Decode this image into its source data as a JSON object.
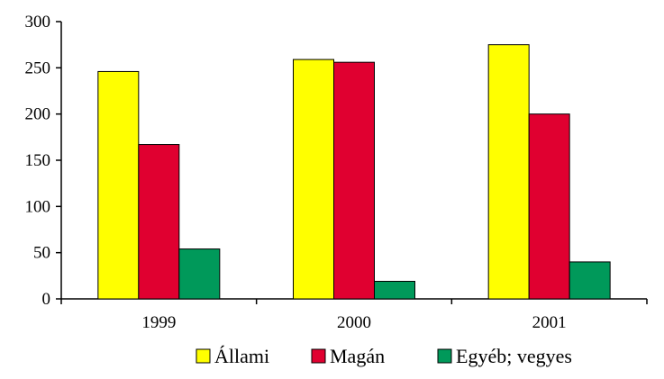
{
  "chart_data": {
    "type": "bar",
    "categories": [
      "1999",
      "2000",
      "2001"
    ],
    "series": [
      {
        "name": "Állami",
        "values": [
          246,
          259,
          275
        ],
        "color": "#ffff00"
      },
      {
        "name": "Magán",
        "values": [
          167,
          256,
          200
        ],
        "color": "#e00030"
      },
      {
        "name": "Egyéb; vegyes",
        "values": [
          54,
          19,
          40
        ],
        "color": "#00995a"
      }
    ],
    "title": "",
    "xlabel": "",
    "ylabel": "",
    "ylim": [
      0,
      300
    ],
    "yticks": [
      "0",
      "50",
      "100",
      "150",
      "200",
      "250",
      "300"
    ],
    "grid": false,
    "legend_position": "bottom"
  }
}
